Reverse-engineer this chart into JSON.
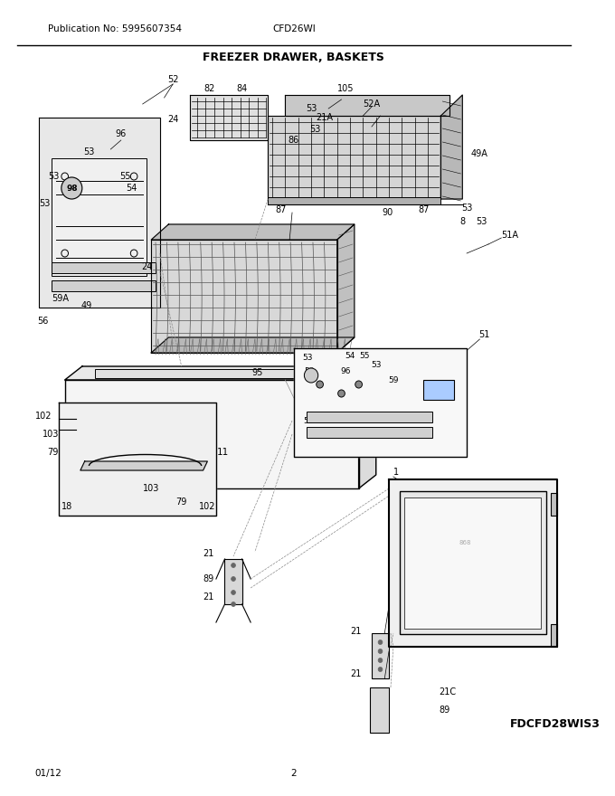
{
  "pub_no": "Publication No: 5995607354",
  "model": "CFD26WI",
  "title": "FREEZER DRAWER, BASKETS",
  "footer_left": "01/12",
  "footer_center": "2",
  "diagram_id": "FDCFD28WIS3",
  "bg_color": "#ffffff",
  "line_color": "#000000",
  "text_color": "#000000",
  "fig_width": 6.8,
  "fig_height": 8.8,
  "dpi": 100
}
